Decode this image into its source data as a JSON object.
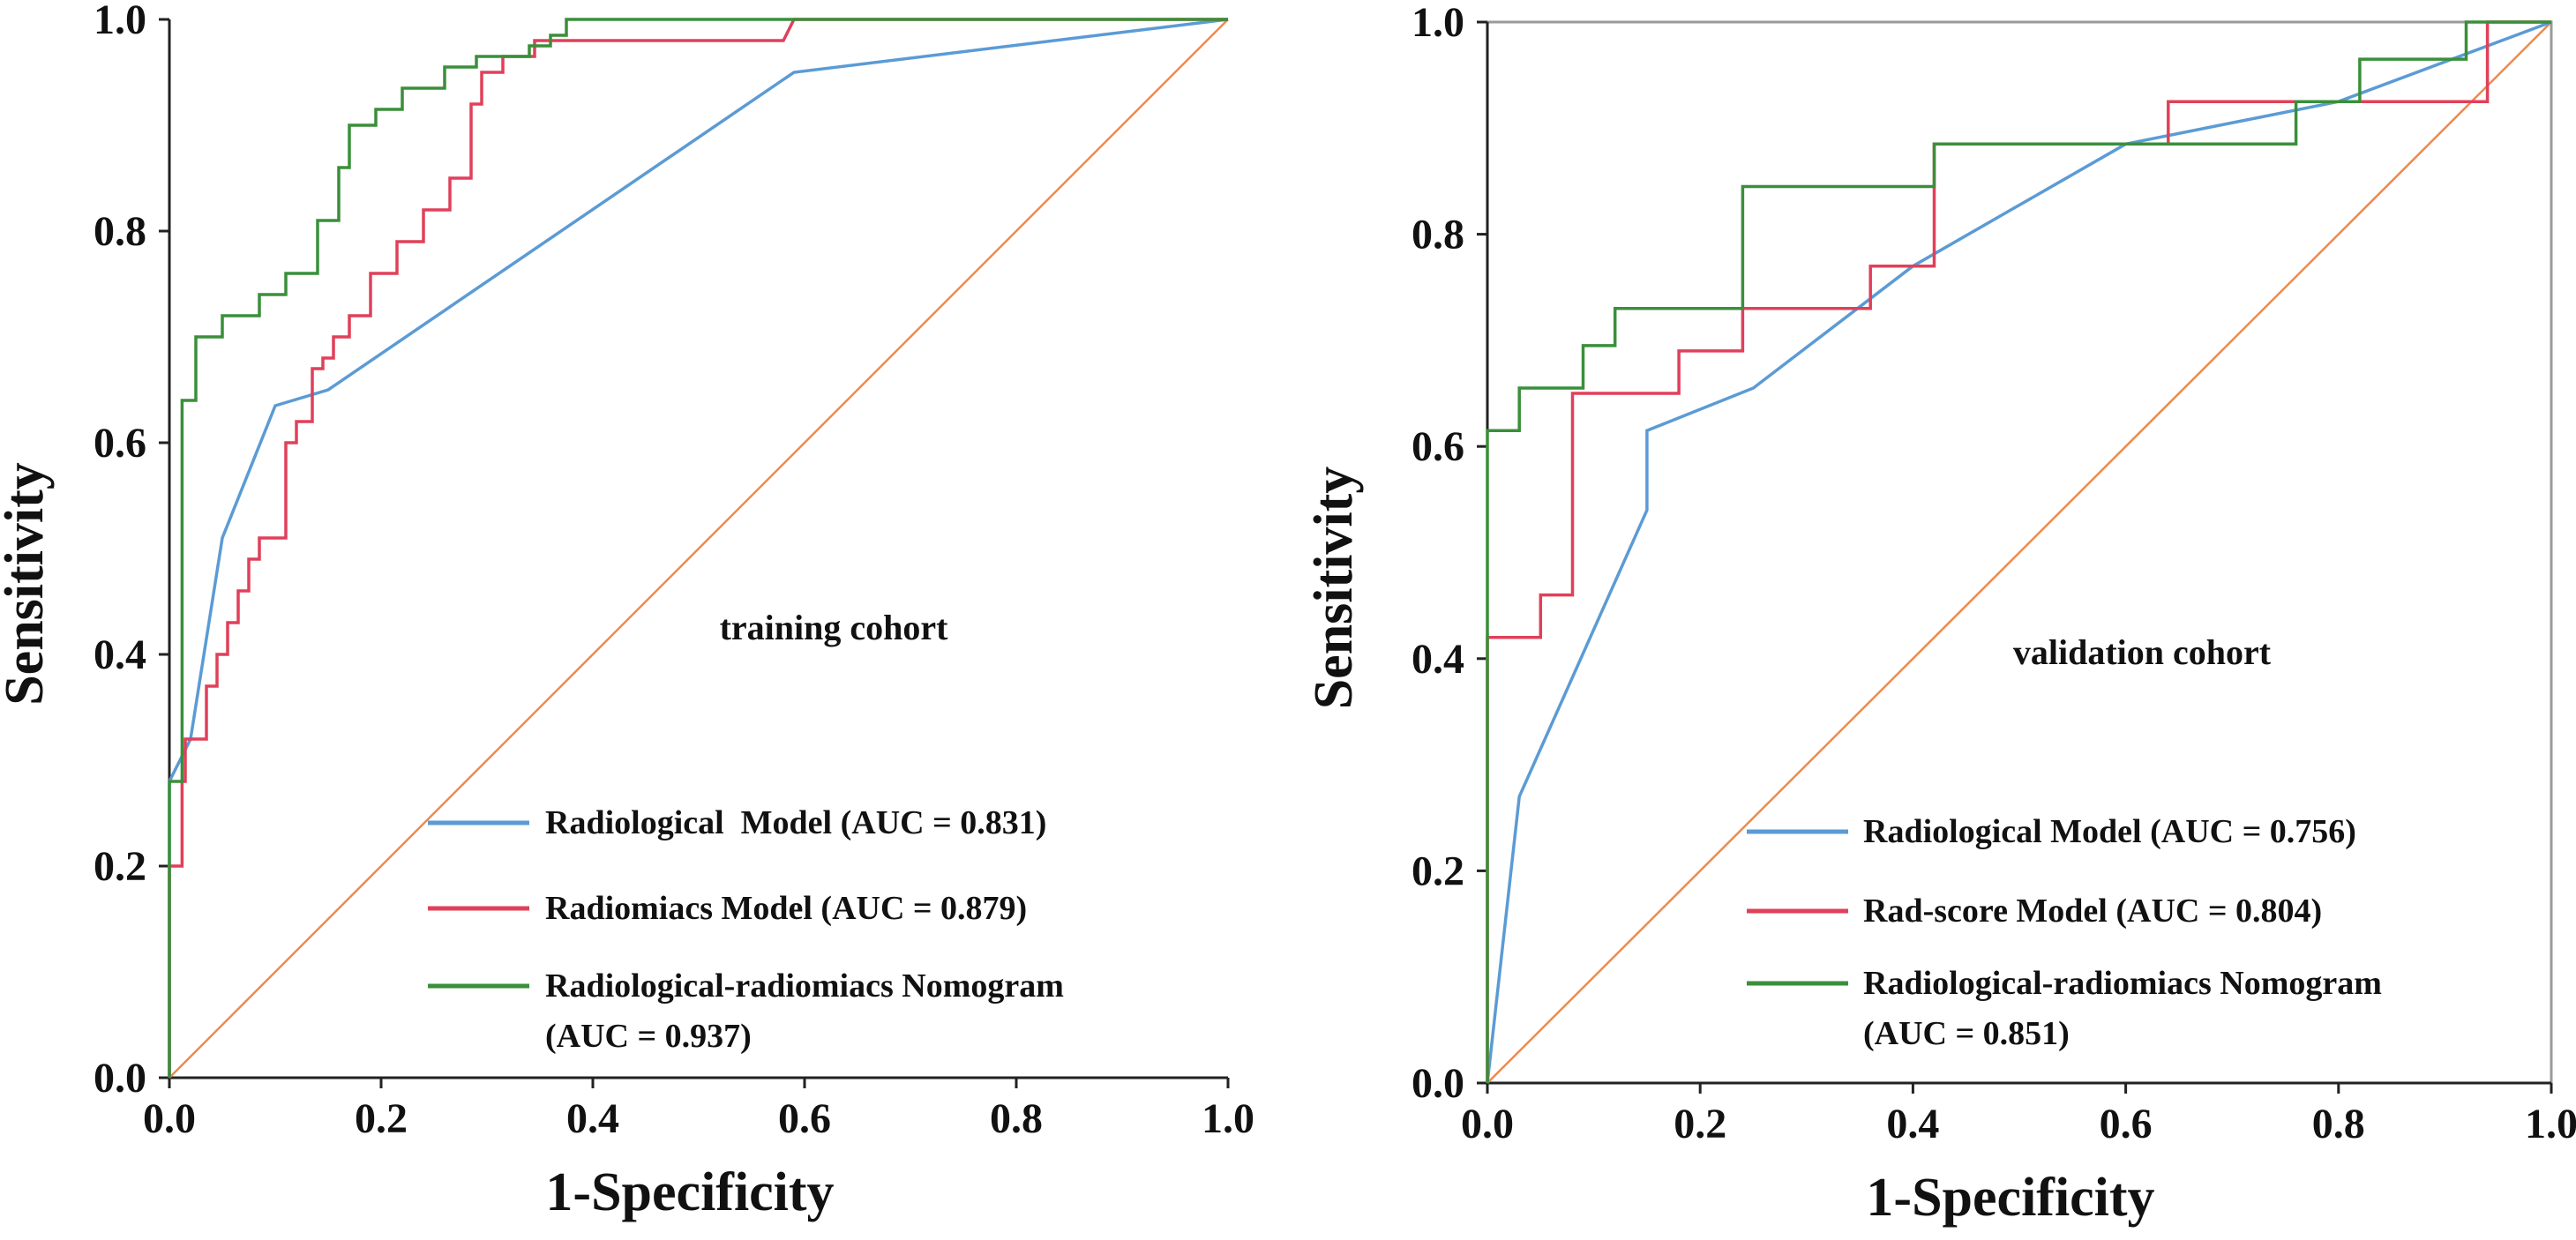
{
  "colors": {
    "radiological": "#5b9bd5",
    "radiomics": "#e0405a",
    "nomogram": "#3a8f3a",
    "reference": "#f08a4b",
    "axis": "#222222"
  },
  "chart_data": [
    {
      "type": "line",
      "annotation": "training cohort",
      "xlabel": "1-Specificity",
      "ylabel": "Sensitivity",
      "xlim": [
        0,
        1
      ],
      "ylim": [
        0,
        1
      ],
      "xticks": [
        "0.0",
        "0.2",
        "0.4",
        "0.6",
        "0.8",
        "1.0"
      ],
      "yticks": [
        "0.0",
        "0.2",
        "0.4",
        "0.6",
        "0.8",
        "1.0"
      ],
      "legend_position": "bottom-right",
      "series": [
        {
          "name": "Radiological Model",
          "legend": "Radiological  Model (AUC = 0.831)",
          "legend_lines": [
            "Radiological  Model (AUC = 0.831)"
          ],
          "auc": 0.831,
          "color_key": "radiological",
          "step": false,
          "points": [
            [
              0,
              0
            ],
            [
              0,
              0.28
            ],
            [
              0.02,
              0.32
            ],
            [
              0.05,
              0.51
            ],
            [
              0.1,
              0.635
            ],
            [
              0.15,
              0.65
            ],
            [
              0.59,
              0.95
            ],
            [
              1,
              1
            ]
          ]
        },
        {
          "name": "Radiomiacs Model",
          "legend": "Radiomiacs Model (AUC = 0.879)",
          "legend_lines": [
            "Radiomiacs Model (AUC = 0.879)"
          ],
          "auc": 0.879,
          "color_key": "radiomics",
          "step": true,
          "points": [
            [
              0,
              0
            ],
            [
              0,
              0.2
            ],
            [
              0.012,
              0.2
            ],
            [
              0.012,
              0.28
            ],
            [
              0.015,
              0.28
            ],
            [
              0.015,
              0.32
            ],
            [
              0.035,
              0.32
            ],
            [
              0.035,
              0.37
            ],
            [
              0.045,
              0.37
            ],
            [
              0.045,
              0.4
            ],
            [
              0.055,
              0.4
            ],
            [
              0.055,
              0.43
            ],
            [
              0.065,
              0.43
            ],
            [
              0.065,
              0.46
            ],
            [
              0.075,
              0.46
            ],
            [
              0.075,
              0.49
            ],
            [
              0.085,
              0.49
            ],
            [
              0.085,
              0.51
            ],
            [
              0.11,
              0.51
            ],
            [
              0.11,
              0.6
            ],
            [
              0.12,
              0.6
            ],
            [
              0.12,
              0.62
            ],
            [
              0.135,
              0.62
            ],
            [
              0.135,
              0.67
            ],
            [
              0.145,
              0.67
            ],
            [
              0.145,
              0.68
            ],
            [
              0.155,
              0.68
            ],
            [
              0.155,
              0.7
            ],
            [
              0.17,
              0.7
            ],
            [
              0.17,
              0.72
            ],
            [
              0.19,
              0.72
            ],
            [
              0.19,
              0.76
            ],
            [
              0.215,
              0.76
            ],
            [
              0.215,
              0.79
            ],
            [
              0.24,
              0.79
            ],
            [
              0.24,
              0.82
            ],
            [
              0.265,
              0.82
            ],
            [
              0.265,
              0.85
            ],
            [
              0.285,
              0.85
            ],
            [
              0.285,
              0.92
            ],
            [
              0.295,
              0.92
            ],
            [
              0.295,
              0.95
            ],
            [
              0.315,
              0.95
            ],
            [
              0.315,
              0.965
            ],
            [
              0.345,
              0.965
            ],
            [
              0.345,
              0.98
            ],
            [
              0.58,
              0.98
            ],
            [
              0.59,
              1
            ],
            [
              1,
              1
            ]
          ]
        },
        {
          "name": "Radiological-radiomiacs Nomogram",
          "legend": "Radiological-radiomiacs Nomogram (AUC = 0.937)",
          "legend_lines": [
            "Radiological-radiomiacs Nomogram",
            "(AUC = 0.937)"
          ],
          "auc": 0.937,
          "color_key": "nomogram",
          "step": true,
          "points": [
            [
              0,
              0
            ],
            [
              0,
              0.28
            ],
            [
              0.012,
              0.28
            ],
            [
              0.012,
              0.64
            ],
            [
              0.025,
              0.64
            ],
            [
              0.025,
              0.7
            ],
            [
              0.05,
              0.7
            ],
            [
              0.05,
              0.72
            ],
            [
              0.085,
              0.72
            ],
            [
              0.085,
              0.74
            ],
            [
              0.11,
              0.74
            ],
            [
              0.11,
              0.76
            ],
            [
              0.14,
              0.76
            ],
            [
              0.14,
              0.81
            ],
            [
              0.16,
              0.81
            ],
            [
              0.16,
              0.86
            ],
            [
              0.17,
              0.86
            ],
            [
              0.17,
              0.9
            ],
            [
              0.195,
              0.9
            ],
            [
              0.195,
              0.915
            ],
            [
              0.22,
              0.915
            ],
            [
              0.22,
              0.935
            ],
            [
              0.26,
              0.935
            ],
            [
              0.26,
              0.955
            ],
            [
              0.29,
              0.955
            ],
            [
              0.29,
              0.965
            ],
            [
              0.34,
              0.965
            ],
            [
              0.34,
              0.975
            ],
            [
              0.36,
              0.975
            ],
            [
              0.36,
              0.985
            ],
            [
              0.375,
              0.985
            ],
            [
              0.375,
              1
            ],
            [
              1,
              1
            ]
          ]
        },
        {
          "name": "Reference",
          "legend": "",
          "legend_lines": [],
          "color_key": "reference",
          "step": false,
          "points": [
            [
              0,
              0
            ],
            [
              1,
              1
            ]
          ]
        }
      ]
    },
    {
      "type": "line",
      "annotation": "validation cohort",
      "xlabel": "1-Specificity",
      "ylabel": "Sensitivity",
      "xlim": [
        0,
        1
      ],
      "ylim": [
        0,
        1
      ],
      "xticks": [
        "0.0",
        "0.2",
        "0.4",
        "0.6",
        "0.8",
        "1.0"
      ],
      "yticks": [
        "0.0",
        "0.2",
        "0.4",
        "0.6",
        "0.8",
        "1.0"
      ],
      "legend_position": "bottom-right",
      "series": [
        {
          "name": "Radiological Model",
          "legend": "Radiological Model (AUC = 0.756)",
          "legend_lines": [
            "Radiological Model (AUC = 0.756)"
          ],
          "auc": 0.756,
          "color_key": "radiological",
          "step": false,
          "points": [
            [
              0,
              0
            ],
            [
              0.03,
              0.27
            ],
            [
              0.15,
              0.54
            ],
            [
              0.15,
              0.615
            ],
            [
              0.25,
              0.655
            ],
            [
              0.4,
              0.77
            ],
            [
              0.6,
              0.885
            ],
            [
              0.8,
              0.925
            ],
            [
              1,
              1
            ]
          ]
        },
        {
          "name": "Rad-score Model",
          "legend": "Rad-score Model (AUC = 0.804)",
          "legend_lines": [
            "Rad-score Model (AUC = 0.804)"
          ],
          "auc": 0.804,
          "color_key": "radiomics",
          "step": true,
          "points": [
            [
              0,
              0
            ],
            [
              0,
              0.42
            ],
            [
              0.05,
              0.42
            ],
            [
              0.05,
              0.46
            ],
            [
              0.08,
              0.46
            ],
            [
              0.08,
              0.65
            ],
            [
              0.18,
              0.65
            ],
            [
              0.18,
              0.69
            ],
            [
              0.24,
              0.69
            ],
            [
              0.24,
              0.73
            ],
            [
              0.36,
              0.73
            ],
            [
              0.36,
              0.77
            ],
            [
              0.42,
              0.77
            ],
            [
              0.42,
              0.885
            ],
            [
              0.64,
              0.885
            ],
            [
              0.64,
              0.925
            ],
            [
              0.94,
              0.925
            ],
            [
              0.94,
              1
            ],
            [
              1,
              1
            ]
          ]
        },
        {
          "name": "Radiological-radiomiacs Nomogram",
          "legend": "Radiological-radiomiacs Nomogram (AUC = 0.851)",
          "legend_lines": [
            "Radiological-radiomiacs Nomogram",
            "(AUC = 0.851)"
          ],
          "auc": 0.851,
          "color_key": "nomogram",
          "step": true,
          "points": [
            [
              0,
              0
            ],
            [
              0,
              0.615
            ],
            [
              0.03,
              0.615
            ],
            [
              0.03,
              0.655
            ],
            [
              0.09,
              0.655
            ],
            [
              0.09,
              0.695
            ],
            [
              0.12,
              0.695
            ],
            [
              0.12,
              0.73
            ],
            [
              0.24,
              0.73
            ],
            [
              0.24,
              0.845
            ],
            [
              0.42,
              0.845
            ],
            [
              0.42,
              0.885
            ],
            [
              0.76,
              0.885
            ],
            [
              0.76,
              0.925
            ],
            [
              0.82,
              0.925
            ],
            [
              0.82,
              0.965
            ],
            [
              0.92,
              0.965
            ],
            [
              0.92,
              1
            ],
            [
              1,
              1
            ]
          ]
        },
        {
          "name": "Reference",
          "legend": "",
          "legend_lines": [],
          "color_key": "reference",
          "step": false,
          "points": [
            [
              0,
              0
            ],
            [
              1,
              1
            ]
          ]
        }
      ]
    }
  ]
}
